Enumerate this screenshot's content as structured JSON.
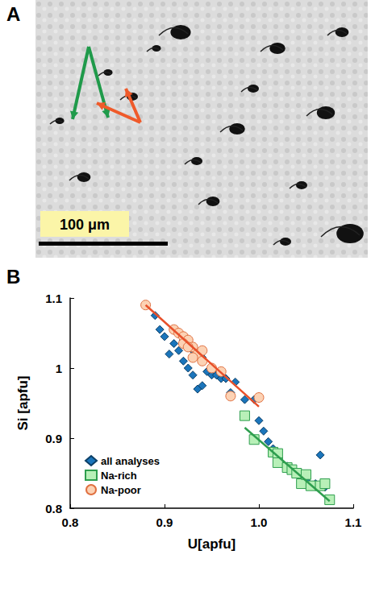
{
  "image_panel": {
    "label": "A",
    "scale_bar": "100 μm"
  },
  "chart_data": {
    "type": "scatter",
    "label": "B",
    "x_label": "U[apfu]",
    "y_label": "Si [apfu]",
    "xlim": [
      0.8,
      1.1
    ],
    "xticks": [
      0.8,
      0.9,
      {
        "value": 1,
        "label": "1.0"
      },
      1.1
    ],
    "ylim": [
      0.8,
      1.1
    ],
    "yticks": [
      0.8,
      0.9,
      1,
      1.1
    ],
    "grid": false,
    "legend": "lower left",
    "series": [
      {
        "name": "all analyses",
        "type": "scatter",
        "marker": "diamond",
        "color": "#1b75bb",
        "x": [
          0.89,
          0.895,
          0.9,
          0.905,
          0.91,
          0.915,
          0.92,
          0.925,
          0.93,
          0.935,
          0.94,
          0.945,
          0.95,
          0.955,
          0.96,
          0.965,
          0.975,
          0.97,
          0.985,
          0.995,
          1.0,
          1.005,
          1.01,
          1.015,
          1.02,
          1.03,
          1.04,
          1.05,
          1.06,
          1.065,
          1.07,
          0.92,
          0.93,
          0.94
        ],
        "values": [
          1.075,
          1.055,
          1.045,
          1.02,
          1.035,
          1.025,
          1.01,
          1.0,
          0.99,
          0.97,
          0.975,
          0.995,
          0.99,
          0.99,
          0.985,
          0.985,
          0.98,
          0.965,
          0.955,
          0.955,
          0.925,
          0.91,
          0.895,
          0.885,
          0.87,
          0.86,
          0.85,
          0.84,
          0.835,
          0.876,
          0.83,
          1.04,
          1.025,
          1.015
        ]
      },
      {
        "name": "Na-rich",
        "type": "scatter",
        "marker": "square",
        "color": "#b8f0b8",
        "x": [
          0.985,
          0.995,
          1.015,
          1.02,
          1.02,
          1.03,
          1.035,
          1.04,
          1.045,
          1.05,
          1.055,
          1.065,
          1.07,
          1.075
        ],
        "values": [
          0.932,
          0.898,
          0.88,
          0.878,
          0.865,
          0.858,
          0.855,
          0.85,
          0.835,
          0.848,
          0.832,
          0.832,
          0.835,
          0.812
        ]
      },
      {
        "name": "Na-poor",
        "type": "scatter",
        "marker": "circle",
        "color": "#fcd2b4",
        "x": [
          0.88,
          0.91,
          0.915,
          0.92,
          0.925,
          0.92,
          0.93,
          0.935,
          0.94,
          0.93,
          0.94,
          0.95,
          0.96,
          0.97,
          1.0,
          0.925
        ],
        "values": [
          1.09,
          1.055,
          1.05,
          1.045,
          1.04,
          1.035,
          1.03,
          1.02,
          1.025,
          1.015,
          1.01,
          1.0,
          0.995,
          0.96,
          0.958,
          1.03
        ]
      },
      {
        "type": "line",
        "line_style": "solid",
        "color": "#e8502a",
        "x": [
          0.88,
          1.0
        ],
        "values": [
          1.09,
          0.945
        ]
      },
      {
        "type": "line",
        "line_style": "solid",
        "color": "#2e9e4e",
        "x": [
          0.985,
          1.075
        ],
        "values": [
          0.915,
          0.81
        ]
      }
    ]
  }
}
